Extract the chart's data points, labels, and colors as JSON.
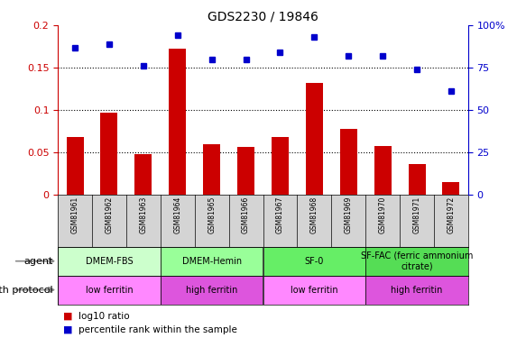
{
  "title": "GDS2230 / 19846",
  "samples": [
    "GSM81961",
    "GSM81962",
    "GSM81963",
    "GSM81964",
    "GSM81965",
    "GSM81966",
    "GSM81967",
    "GSM81968",
    "GSM81969",
    "GSM81970",
    "GSM81971",
    "GSM81972"
  ],
  "log10_ratio": [
    0.068,
    0.097,
    0.048,
    0.172,
    0.059,
    0.056,
    0.068,
    0.132,
    0.078,
    0.057,
    0.036,
    0.014
  ],
  "percentile_rank": [
    87,
    89,
    76,
    94,
    80,
    80,
    84,
    93,
    82,
    82,
    74,
    61
  ],
  "bar_color": "#cc0000",
  "dot_color": "#0000cc",
  "left_yticks": [
    0,
    0.05,
    0.1,
    0.15,
    0.2
  ],
  "left_yticklabels": [
    "0",
    "0.05",
    "0.1",
    "0.15",
    "0.2"
  ],
  "right_yticks": [
    0,
    25,
    50,
    75,
    100
  ],
  "right_yticklabels": [
    "0",
    "25",
    "50",
    "75",
    "100%"
  ],
  "agent_groups": [
    {
      "label": "DMEM-FBS",
      "start": 0,
      "end": 3,
      "color": "#ccffcc"
    },
    {
      "label": "DMEM-Hemin",
      "start": 3,
      "end": 6,
      "color": "#99ff99"
    },
    {
      "label": "SF-0",
      "start": 6,
      "end": 9,
      "color": "#66ee66"
    },
    {
      "label": "SF-FAC (ferric ammonium\ncitrate)",
      "start": 9,
      "end": 12,
      "color": "#55dd55"
    }
  ],
  "protocol_groups": [
    {
      "label": "low ferritin",
      "start": 0,
      "end": 3,
      "color": "#ff88ff"
    },
    {
      "label": "high ferritin",
      "start": 3,
      "end": 6,
      "color": "#dd55dd"
    },
    {
      "label": "low ferritin",
      "start": 6,
      "end": 9,
      "color": "#ff88ff"
    },
    {
      "label": "high ferritin",
      "start": 9,
      "end": 12,
      "color": "#dd55dd"
    }
  ],
  "agent_label": "agent",
  "protocol_label": "growth protocol",
  "legend_bar": "log10 ratio",
  "legend_dot": "percentile rank within the sample",
  "bar_width": 0.5,
  "sample_area_bg": "#d4d4d4",
  "grid_line_color": "#ffffff"
}
